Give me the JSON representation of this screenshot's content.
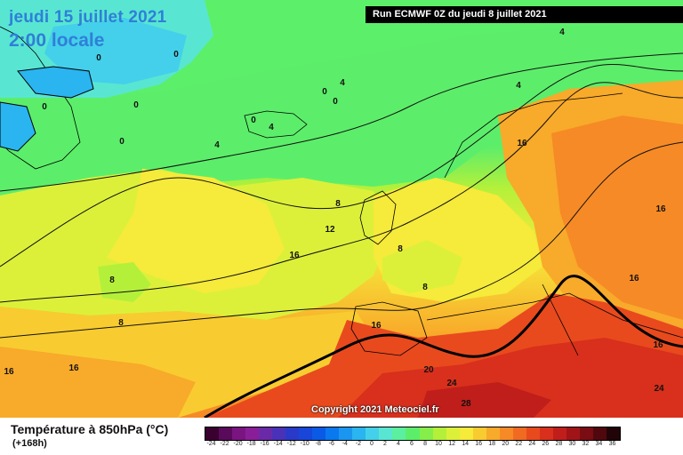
{
  "header": {
    "date": "jeudi 15 juillet 2021",
    "time": "2:00 locale",
    "run": "Run ECMWF 0Z du jeudi 8 juillet 2021"
  },
  "copyright": "Copyright 2021 Meteociel.fr",
  "legend": {
    "title": "Température à 850hPa (°C)",
    "subtitle": "(+168h)",
    "ticks": [
      "-24",
      "-22",
      "-20",
      "-18",
      "-16",
      "-14",
      "-12",
      "-10",
      "-8",
      "-6",
      "-4",
      "-2",
      "0",
      "2",
      "4",
      "6",
      "8",
      "10",
      "12",
      "14",
      "16",
      "18",
      "20",
      "22",
      "24",
      "26",
      "28",
      "30",
      "32",
      "34",
      "36"
    ],
    "colors": [
      "#3a0030",
      "#5a0a5a",
      "#7a1480",
      "#8a1e98",
      "#6a2aa8",
      "#4a32b8",
      "#2a3ac8",
      "#1846d8",
      "#0a5ae6",
      "#0a78ee",
      "#1a96f0",
      "#2ab4f0",
      "#44d0ea",
      "#58e6d2",
      "#5af0a0",
      "#5cee6a",
      "#86ee4a",
      "#b4f03a",
      "#dcf03a",
      "#f6ea3a",
      "#f8cc30",
      "#f8aa2a",
      "#f68a26",
      "#f06a22",
      "#e84a1e",
      "#d8301c",
      "#c01e1a",
      "#a01418",
      "#7a0c14",
      "#50080e",
      "#200408"
    ]
  },
  "map_labels": [
    "0",
    "0",
    "0",
    "0",
    "0",
    "0",
    "0",
    "0",
    "4",
    "4",
    "4",
    "4",
    "4",
    "16",
    "16",
    "16",
    "16",
    "16",
    "16",
    "16",
    "16",
    "8",
    "8",
    "8",
    "8",
    "8",
    "12",
    "20",
    "24",
    "24",
    "28"
  ]
}
